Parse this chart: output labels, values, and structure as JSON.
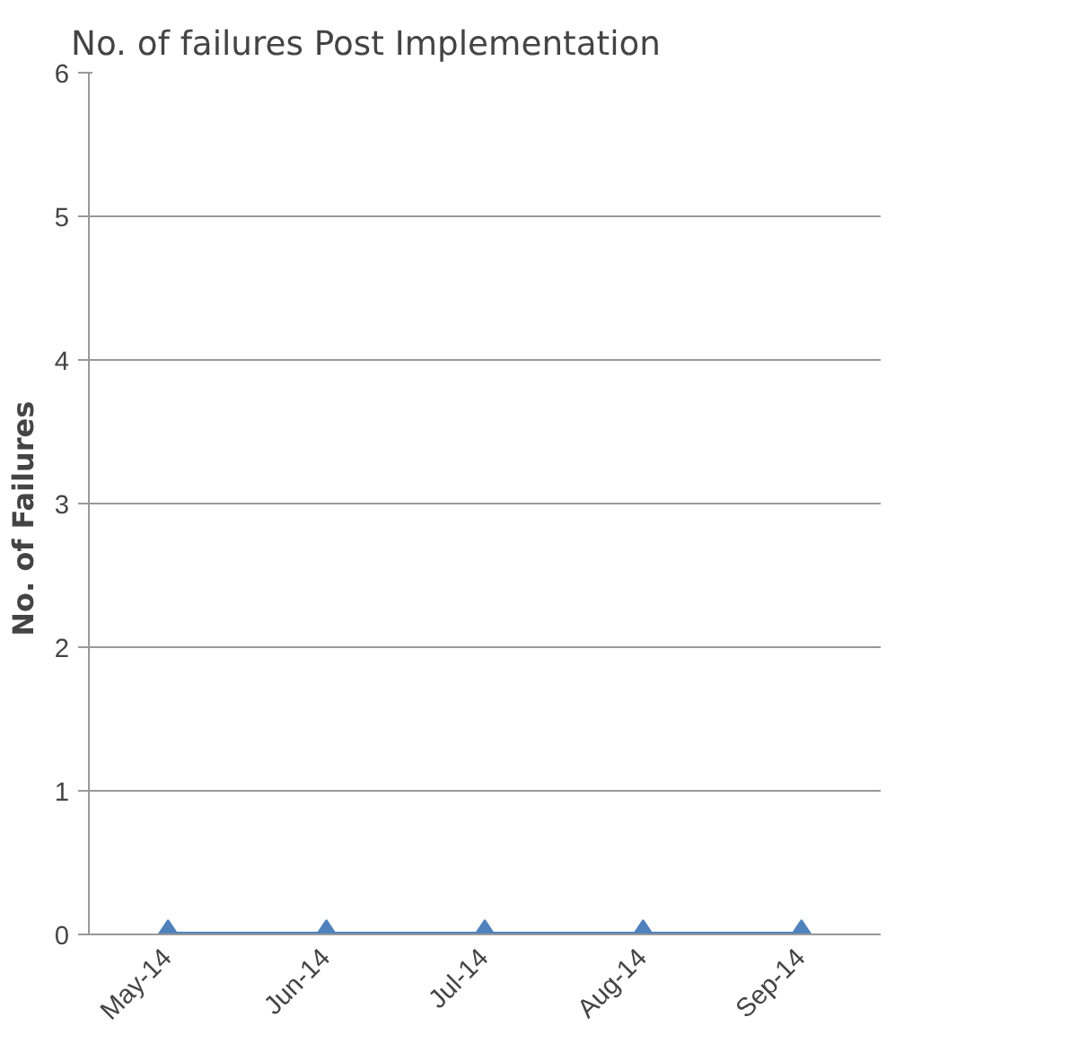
{
  "chart_data": {
    "type": "line",
    "title": "No. of failures Post  Implementation",
    "ylabel": "No.  of   Failures",
    "categories": [
      "May-14",
      "Jun-14",
      "Jul-14",
      "Aug-14",
      "Sep-14"
    ],
    "series": [
      {
        "color": "#4f81bd",
        "values": [
          0,
          0,
          0,
          0,
          0
        ]
      }
    ],
    "ylim": [
      0,
      6
    ],
    "yticks": [
      0,
      1,
      2,
      3,
      4,
      5,
      6
    ],
    "grid": "y",
    "marker": "diamond"
  }
}
